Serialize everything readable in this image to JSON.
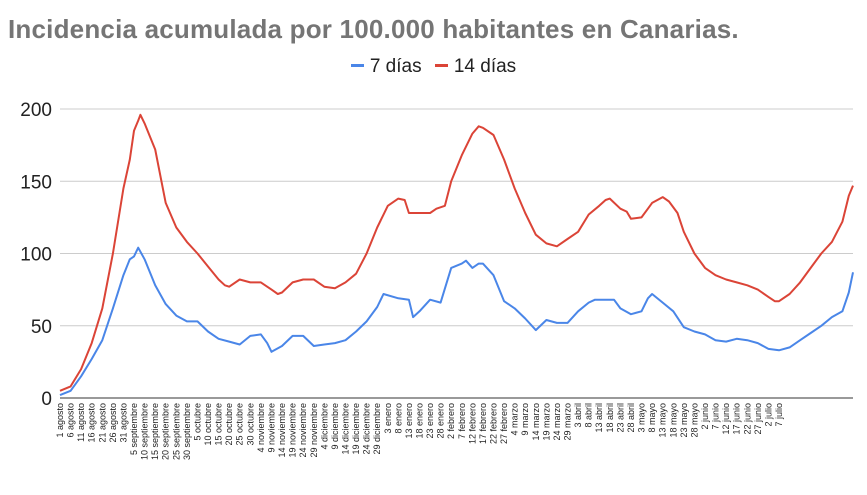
{
  "chart_data": {
    "type": "line",
    "title": "Incidencia acumulada por 100.000 habitantes en Canarias.",
    "xlabel": "",
    "ylabel": "",
    "ylim": [
      0,
      200
    ],
    "yticks": [
      0,
      50,
      100,
      150,
      200
    ],
    "grid": true,
    "legend_position": "top",
    "x_tick_labels": [
      "1 agosto",
      "6 agosto",
      "11 agosto",
      "16 agosto",
      "21 agosto",
      "26 agosto",
      "31 agosto",
      "5 septiembre",
      "10 septiembre",
      "15 septiembre",
      "20 septiembre",
      "25 septiembre",
      "30 septiembre",
      "5 octubre",
      "10 octubre",
      "15 octubre",
      "20 octubre",
      "25 octubre",
      "30 octubre",
      "4 noviembre",
      "9 noviembre",
      "14 noviembre",
      "19 noviembre",
      "24 noviembre",
      "29 noviembre",
      "4 diciembre",
      "9 diciembre",
      "14 diciembre",
      "19 diciembre",
      "24 diciembre",
      "29 diciembre",
      "3 enero",
      "8 enero",
      "13 enero",
      "18 enero",
      "23 enero",
      "28 enero",
      "2 febrero",
      "7 febrero",
      "12 febrero",
      "17 febrero",
      "22 febrero",
      "27 febrero",
      "4 marzo",
      "9 marzo",
      "14 marzo",
      "19 marzo",
      "24 marzo",
      "29 marzo",
      "3 abril",
      "8 abril",
      "13 abril",
      "18 abril",
      "23 abril",
      "28 abril",
      "3 mayo",
      "8 mayo",
      "13 mayo",
      "18 mayo",
      "23 mayo",
      "28 mayo",
      "2 junio",
      "7 junio",
      "12 junio",
      "17 junio",
      "22 junio",
      "27 junio",
      "2 julio",
      "7 julio"
    ],
    "series": [
      {
        "name": "7 días",
        "color": "#4a86e8",
        "points": [
          [
            0,
            2
          ],
          [
            5,
            5
          ],
          [
            10,
            15
          ],
          [
            15,
            27
          ],
          [
            20,
            40
          ],
          [
            25,
            62
          ],
          [
            30,
            85
          ],
          [
            33,
            96
          ],
          [
            35,
            98
          ],
          [
            37,
            104
          ],
          [
            40,
            96
          ],
          [
            45,
            78
          ],
          [
            50,
            65
          ],
          [
            55,
            57
          ],
          [
            60,
            53
          ],
          [
            65,
            53
          ],
          [
            70,
            46
          ],
          [
            75,
            41
          ],
          [
            80,
            39
          ],
          [
            85,
            37
          ],
          [
            90,
            43
          ],
          [
            95,
            44
          ],
          [
            98,
            38
          ],
          [
            100,
            32
          ],
          [
            105,
            36
          ],
          [
            110,
            43
          ],
          [
            115,
            43
          ],
          [
            120,
            36
          ],
          [
            125,
            37
          ],
          [
            130,
            38
          ],
          [
            135,
            40
          ],
          [
            140,
            46
          ],
          [
            145,
            53
          ],
          [
            150,
            63
          ],
          [
            153,
            72
          ],
          [
            160,
            69
          ],
          [
            165,
            68
          ],
          [
            167,
            56
          ],
          [
            170,
            60
          ],
          [
            175,
            68
          ],
          [
            180,
            66
          ],
          [
            185,
            90
          ],
          [
            190,
            93
          ],
          [
            192,
            95
          ],
          [
            195,
            90
          ],
          [
            198,
            93
          ],
          [
            200,
            93
          ],
          [
            205,
            85
          ],
          [
            210,
            67
          ],
          [
            215,
            62
          ],
          [
            220,
            55
          ],
          [
            225,
            47
          ],
          [
            230,
            54
          ],
          [
            235,
            52
          ],
          [
            240,
            52
          ],
          [
            245,
            60
          ],
          [
            250,
            66
          ],
          [
            253,
            68
          ],
          [
            258,
            68
          ],
          [
            262,
            68
          ],
          [
            265,
            62
          ],
          [
            270,
            58
          ],
          [
            275,
            60
          ],
          [
            278,
            69
          ],
          [
            280,
            72
          ],
          [
            285,
            66
          ],
          [
            290,
            60
          ],
          [
            295,
            49
          ],
          [
            300,
            46
          ],
          [
            305,
            44
          ],
          [
            310,
            40
          ],
          [
            315,
            39
          ],
          [
            320,
            41
          ],
          [
            325,
            40
          ],
          [
            330,
            38
          ],
          [
            335,
            34
          ],
          [
            340,
            33
          ],
          [
            345,
            35
          ],
          [
            350,
            40
          ],
          [
            355,
            45
          ],
          [
            360,
            50
          ],
          [
            365,
            56
          ],
          [
            370,
            60
          ],
          [
            373,
            73
          ],
          [
            375,
            87
          ]
        ]
      },
      {
        "name": "14 días",
        "color": "#db4437",
        "points": [
          [
            0,
            5
          ],
          [
            5,
            8
          ],
          [
            10,
            20
          ],
          [
            15,
            38
          ],
          [
            20,
            62
          ],
          [
            25,
            100
          ],
          [
            30,
            145
          ],
          [
            33,
            165
          ],
          [
            35,
            185
          ],
          [
            37,
            192
          ],
          [
            38,
            196
          ],
          [
            40,
            190
          ],
          [
            45,
            172
          ],
          [
            50,
            135
          ],
          [
            55,
            118
          ],
          [
            60,
            108
          ],
          [
            65,
            100
          ],
          [
            70,
            91
          ],
          [
            75,
            82
          ],
          [
            78,
            78
          ],
          [
            80,
            77
          ],
          [
            85,
            82
          ],
          [
            90,
            80
          ],
          [
            95,
            80
          ],
          [
            98,
            77
          ],
          [
            100,
            75
          ],
          [
            103,
            72
          ],
          [
            105,
            73
          ],
          [
            110,
            80
          ],
          [
            115,
            82
          ],
          [
            118,
            82
          ],
          [
            120,
            82
          ],
          [
            125,
            77
          ],
          [
            130,
            76
          ],
          [
            135,
            80
          ],
          [
            140,
            86
          ],
          [
            145,
            100
          ],
          [
            150,
            118
          ],
          [
            155,
            133
          ],
          [
            160,
            138
          ],
          [
            163,
            137
          ],
          [
            165,
            128
          ],
          [
            170,
            128
          ],
          [
            175,
            128
          ],
          [
            178,
            131
          ],
          [
            182,
            133
          ],
          [
            185,
            150
          ],
          [
            190,
            168
          ],
          [
            195,
            183
          ],
          [
            198,
            188
          ],
          [
            200,
            187
          ],
          [
            205,
            182
          ],
          [
            210,
            165
          ],
          [
            215,
            145
          ],
          [
            220,
            128
          ],
          [
            225,
            113
          ],
          [
            230,
            107
          ],
          [
            235,
            105
          ],
          [
            240,
            110
          ],
          [
            245,
            115
          ],
          [
            250,
            127
          ],
          [
            255,
            133
          ],
          [
            258,
            137
          ],
          [
            260,
            138
          ],
          [
            265,
            131
          ],
          [
            268,
            129
          ],
          [
            270,
            124
          ],
          [
            275,
            125
          ],
          [
            278,
            131
          ],
          [
            280,
            135
          ],
          [
            285,
            139
          ],
          [
            288,
            136
          ],
          [
            292,
            128
          ],
          [
            295,
            115
          ],
          [
            300,
            100
          ],
          [
            305,
            90
          ],
          [
            310,
            85
          ],
          [
            315,
            82
          ],
          [
            320,
            80
          ],
          [
            325,
            78
          ],
          [
            330,
            75
          ],
          [
            335,
            70
          ],
          [
            338,
            67
          ],
          [
            340,
            67
          ],
          [
            345,
            72
          ],
          [
            350,
            80
          ],
          [
            355,
            90
          ],
          [
            360,
            100
          ],
          [
            365,
            108
          ],
          [
            370,
            122
          ],
          [
            373,
            140
          ],
          [
            375,
            147
          ]
        ]
      }
    ]
  }
}
